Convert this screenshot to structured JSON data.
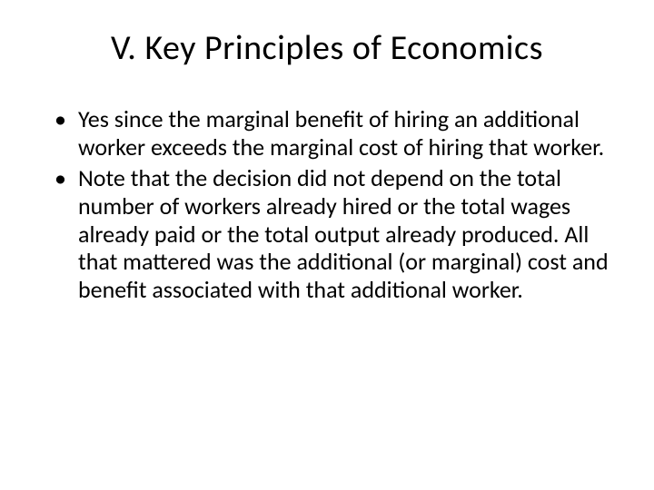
{
  "slide": {
    "title": "V. Key Principles of Economics",
    "bullets": [
      "Yes since the marginal benefit of hiring an additional worker exceeds the marginal cost of hiring that worker.",
      "Note that the decision did not depend on the total number of workers already hired or the total wages already paid or the total output already produced.  All that mattered was the additional (or marginal) cost and benefit associated with that additional worker."
    ]
  },
  "styling": {
    "background_color": "#ffffff",
    "text_color": "#000000",
    "title_fontsize": 38,
    "body_fontsize": 26,
    "font_family": "Calibri"
  }
}
